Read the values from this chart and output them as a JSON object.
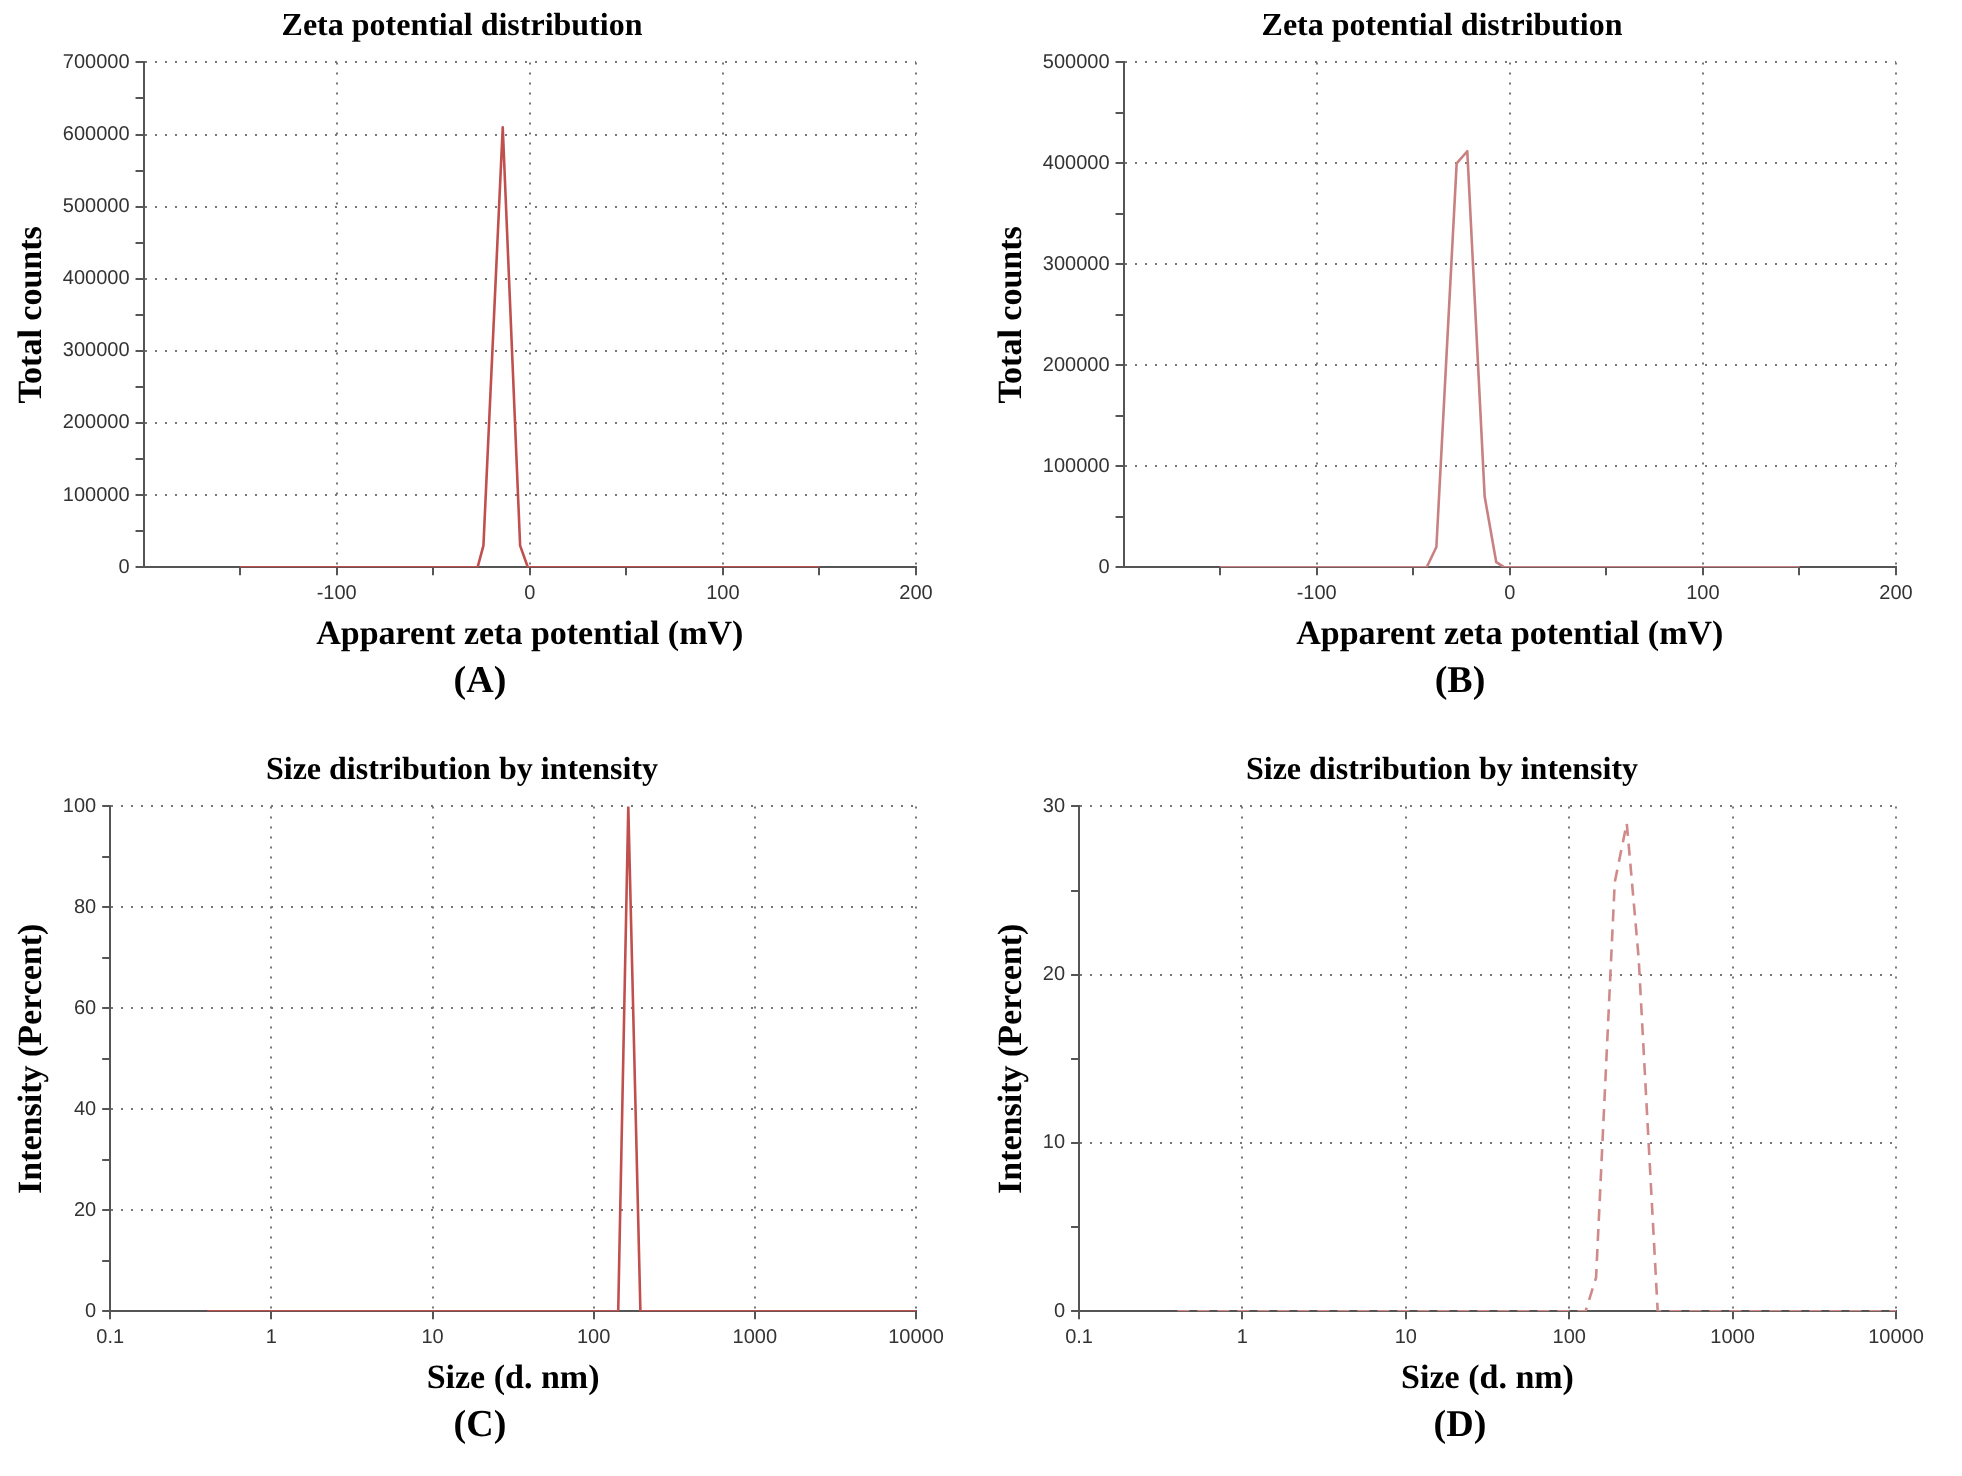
{
  "chart_data": [
    {
      "type": "line",
      "title": "Zeta potential distribution",
      "xlabel": "Apparent zeta potential (mV)",
      "ylabel": "Total counts",
      "annotations": [
        "(A)"
      ],
      "grid": true,
      "marker": "none",
      "line_style": "solid",
      "x": [
        -150,
        -27,
        -24,
        -14,
        -5,
        -1,
        0,
        150
      ],
      "series": [
        {
          "color": "#c0504d",
          "values": [
            0,
            0,
            30000,
            610000,
            30000,
            0,
            0,
            0
          ]
        }
      ],
      "xlim": [
        -200,
        200
      ],
      "xticks": [
        -100,
        {
          "value": -150,
          "label": null
        },
        {
          "value": -50,
          "label": null
        },
        0,
        {
          "value": 50,
          "label": null
        },
        100,
        {
          "value": 150,
          "label": null
        },
        200
      ],
      "ylim": [
        0,
        700000
      ],
      "yticks": [
        0,
        {
          "value": 50000,
          "label": null
        },
        100000,
        {
          "value": 150000,
          "label": null
        },
        200000,
        {
          "value": 250000,
          "label": null
        },
        300000,
        {
          "value": 350000,
          "label": null
        },
        400000,
        {
          "value": 450000,
          "label": null
        },
        500000,
        {
          "value": 550000,
          "label": null
        },
        600000,
        {
          "value": 650000,
          "label": null
        },
        700000
      ]
    },
    {
      "type": "line",
      "title": "Zeta potential distribution",
      "xlabel": "Apparent zeta potential (mV)",
      "ylabel": "Total counts",
      "annotations": [
        "(B)"
      ],
      "grid": true,
      "marker": "none",
      "line_style": "solid",
      "x": [
        -150,
        -43,
        -38,
        -27.5,
        -22,
        -13,
        -7,
        -3,
        150
      ],
      "series": [
        {
          "color": "#c98080",
          "values": [
            0,
            0,
            20000,
            400000,
            412000,
            70000,
            5000,
            0,
            0
          ]
        }
      ],
      "xlim": [
        -200,
        200
      ],
      "xticks": [
        -100,
        {
          "value": -150,
          "label": null
        },
        {
          "value": -50,
          "label": null
        },
        0,
        {
          "value": 50,
          "label": null
        },
        100,
        {
          "value": 150,
          "label": null
        },
        200
      ],
      "ylim": [
        0,
        500000
      ],
      "yticks": [
        0,
        {
          "value": 50000,
          "label": null
        },
        100000,
        {
          "value": 150000,
          "label": null
        },
        200000,
        {
          "value": 250000,
          "label": null
        },
        300000,
        {
          "value": 350000,
          "label": null
        },
        400000,
        {
          "value": 450000,
          "label": null
        },
        500000
      ]
    },
    {
      "type": "line",
      "title": "Size distribution by intensity",
      "xlabel": "Size (d. nm)",
      "ylabel": "Intensity (Percent)",
      "annotations": [
        "(C)"
      ],
      "grid": true,
      "marker": "none",
      "line_style": "solid",
      "log": "x",
      "x": [
        0.4,
        142,
        164,
        195,
        10000
      ],
      "series": [
        {
          "color": "#c0504d",
          "values": [
            0,
            0,
            100,
            0,
            0
          ]
        }
      ],
      "xlim": [
        0.1,
        10000
      ],
      "xticks": [
        0.1,
        1,
        10,
        100,
        1000,
        10000
      ],
      "ylim": [
        0,
        100
      ],
      "yticks": [
        0,
        {
          "value": 10,
          "label": null
        },
        20,
        {
          "value": 30,
          "label": null
        },
        40,
        {
          "value": 50,
          "label": null
        },
        60,
        {
          "value": 70,
          "label": null
        },
        80,
        {
          "value": 90,
          "label": null
        },
        100
      ]
    },
    {
      "type": "line",
      "title": "Size distribution by intensity",
      "xlabel": "Size (d. nm)",
      "ylabel": "Intensity (Percent)",
      "annotations": [
        "(D)"
      ],
      "grid": true,
      "marker": "none",
      "line_style": "dashed",
      "log": "x",
      "x": [
        0.4,
        126,
        146,
        190,
        225,
        266,
        348,
        10000
      ],
      "series": [
        {
          "color": "#d08a8a",
          "values": [
            0,
            0,
            2,
            25.5,
            29,
            21,
            0,
            0
          ]
        }
      ],
      "xlim": [
        0.1,
        10000
      ],
      "xticks": [
        0.1,
        1,
        10,
        100,
        1000,
        10000
      ],
      "ylim": [
        0,
        30
      ],
      "yticks": [
        0,
        {
          "value": 5,
          "label": null
        },
        10,
        {
          "value": 15,
          "label": null
        },
        20,
        {
          "value": 25,
          "label": null
        },
        30
      ]
    }
  ]
}
